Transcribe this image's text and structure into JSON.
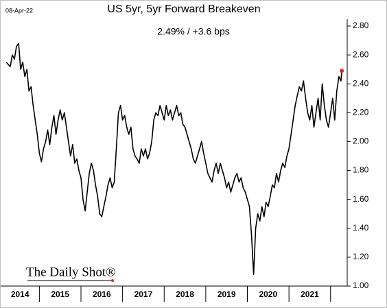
{
  "chart_data": {
    "type": "line",
    "date_label": "08-Apr-22",
    "title": "US 5yr, 5yr Forward Breakeven",
    "subtitle": "2.49%  /  +3.6 bps",
    "logo": "The Daily Shot®",
    "color": "#000000",
    "last_point_color": "#e8262a",
    "x": [
      2014.2,
      2014.3,
      2014.35,
      2014.4,
      2014.45,
      2014.5,
      2014.55,
      2014.6,
      2014.65,
      2014.7,
      2014.75,
      2014.8,
      2014.85,
      2014.9,
      2014.95,
      2015.0,
      2015.05,
      2015.1,
      2015.15,
      2015.2,
      2015.25,
      2015.3,
      2015.35,
      2015.4,
      2015.45,
      2015.5,
      2015.55,
      2015.6,
      2015.65,
      2015.7,
      2015.75,
      2015.8,
      2015.85,
      2015.9,
      2015.95,
      2016.0,
      2016.05,
      2016.1,
      2016.15,
      2016.2,
      2016.25,
      2016.3,
      2016.35,
      2016.4,
      2016.45,
      2016.5,
      2016.55,
      2016.6,
      2016.65,
      2016.7,
      2016.75,
      2016.8,
      2016.85,
      2016.9,
      2016.95,
      2017.0,
      2017.05,
      2017.1,
      2017.15,
      2017.2,
      2017.25,
      2017.3,
      2017.35,
      2017.4,
      2017.45,
      2017.5,
      2017.55,
      2017.6,
      2017.65,
      2017.7,
      2017.75,
      2017.8,
      2017.85,
      2017.9,
      2017.95,
      2018.0,
      2018.05,
      2018.1,
      2018.15,
      2018.2,
      2018.25,
      2018.3,
      2018.35,
      2018.4,
      2018.45,
      2018.5,
      2018.55,
      2018.6,
      2018.65,
      2018.7,
      2018.75,
      2018.8,
      2018.85,
      2018.9,
      2018.95,
      2019.0,
      2019.05,
      2019.1,
      2019.15,
      2019.2,
      2019.25,
      2019.3,
      2019.35,
      2019.4,
      2019.45,
      2019.5,
      2019.55,
      2019.6,
      2019.65,
      2019.7,
      2019.75,
      2019.8,
      2019.85,
      2019.9,
      2019.95,
      2020.0,
      2020.05,
      2020.1,
      2020.15,
      2020.2,
      2020.25,
      2020.3,
      2020.35,
      2020.4,
      2020.45,
      2020.5,
      2020.55,
      2020.6,
      2020.65,
      2020.7,
      2020.75,
      2020.8,
      2020.85,
      2020.9,
      2020.95,
      2021.0,
      2021.05,
      2021.1,
      2021.15,
      2021.2,
      2021.25,
      2021.3,
      2021.35,
      2021.4,
      2021.45,
      2021.5,
      2021.55,
      2021.6,
      2021.65,
      2021.7,
      2021.75,
      2021.8,
      2021.85,
      2021.9,
      2021.95,
      2022.0,
      2022.05,
      2022.1,
      2022.15,
      2022.2,
      2022.25,
      2022.27
    ],
    "values": [
      2.55,
      2.52,
      2.6,
      2.57,
      2.66,
      2.68,
      2.5,
      2.55,
      2.45,
      2.5,
      2.35,
      2.38,
      2.25,
      2.15,
      2.05,
      1.92,
      1.86,
      1.95,
      2.0,
      2.08,
      1.98,
      2.1,
      2.18,
      2.05,
      2.15,
      2.22,
      2.15,
      2.2,
      2.1,
      2.0,
      1.9,
      1.98,
      1.85,
      1.88,
      1.8,
      1.75,
      1.6,
      1.52,
      1.65,
      1.78,
      1.85,
      1.8,
      1.7,
      1.62,
      1.5,
      1.48,
      1.55,
      1.62,
      1.7,
      1.75,
      1.68,
      1.72,
      1.95,
      2.2,
      2.25,
      2.15,
      2.18,
      2.1,
      2.05,
      2.1,
      1.95,
      1.9,
      1.88,
      1.85,
      1.95,
      1.9,
      1.95,
      1.88,
      1.92,
      2.0,
      2.15,
      2.2,
      2.18,
      2.25,
      2.2,
      2.15,
      2.25,
      2.18,
      2.22,
      2.15,
      2.2,
      2.25,
      2.18,
      2.2,
      2.12,
      2.1,
      2.05,
      2.0,
      1.95,
      1.88,
      1.85,
      1.9,
      1.95,
      2.0,
      1.92,
      1.85,
      1.78,
      1.75,
      1.72,
      1.8,
      1.85,
      1.78,
      1.85,
      1.8,
      1.75,
      1.68,
      1.72,
      1.65,
      1.7,
      1.75,
      1.78,
      1.72,
      1.75,
      1.68,
      1.65,
      1.6,
      1.55,
      1.35,
      1.08,
      1.4,
      1.5,
      1.45,
      1.55,
      1.48,
      1.58,
      1.55,
      1.62,
      1.7,
      1.68,
      1.78,
      1.72,
      1.8,
      1.85,
      1.82,
      1.9,
      1.95,
      2.05,
      2.15,
      2.25,
      2.32,
      2.38,
      2.35,
      2.42,
      2.3,
      2.2,
      2.15,
      2.25,
      2.1,
      2.2,
      2.3,
      2.15,
      2.4,
      2.25,
      2.15,
      2.1,
      2.2,
      2.3,
      2.15,
      2.35,
      2.45,
      2.42,
      2.49
    ],
    "xlim": [
      2014.07,
      2022.4
    ],
    "xticks": [
      {
        "value": 2014.5,
        "label": "2014"
      },
      {
        "value": 2015.5,
        "label": "2015"
      },
      {
        "value": 2016.5,
        "label": "2016"
      },
      {
        "value": 2017.5,
        "label": "2017"
      },
      {
        "value": 2018.5,
        "label": "2018"
      },
      {
        "value": 2019.5,
        "label": "2019"
      },
      {
        "value": 2020.5,
        "label": "2020"
      },
      {
        "value": 2021.5,
        "label": "2021"
      }
    ],
    "ylim": [
      1.0,
      2.8
    ],
    "yticks": [
      {
        "value": 1.0,
        "label": "1.00"
      },
      {
        "value": 1.2,
        "label": "1.20"
      },
      {
        "value": 1.4,
        "label": "1.40"
      },
      {
        "value": 1.6,
        "label": "1.60"
      },
      {
        "value": 1.8,
        "label": "1.80"
      },
      {
        "value": 2.0,
        "label": "2.00"
      },
      {
        "value": 2.2,
        "label": "2.20"
      },
      {
        "value": 2.4,
        "label": "2.40"
      },
      {
        "value": 2.6,
        "label": "2.60"
      },
      {
        "value": 2.8,
        "label": "2.80"
      }
    ]
  }
}
